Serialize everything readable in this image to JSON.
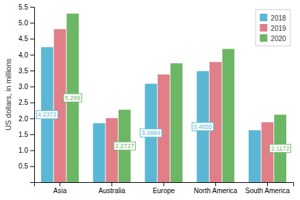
{
  "chart_data": {
    "type": "bar",
    "categories": [
      "Asia",
      "Australia",
      "Europe",
      "North America",
      "South America"
    ],
    "series": [
      {
        "name": "2018",
        "color": "#5bb8d4",
        "values": [
          4.2372,
          1.85,
          3.0884,
          3.4855,
          1.63
        ],
        "value_labels": [
          "4.2372",
          null,
          "3.0884",
          "3.4855",
          null
        ]
      },
      {
        "name": "2019",
        "color": "#e07f88",
        "values": [
          4.8,
          2.01,
          3.38,
          3.77,
          1.88
        ],
        "value_labels": [
          null,
          null,
          null,
          null,
          null
        ]
      },
      {
        "name": "2020",
        "color": "#6db665",
        "values": [
          5.289,
          2.2727,
          3.73,
          4.18,
          2.1172
        ],
        "value_labels": [
          "5.289",
          "2.2727",
          null,
          null,
          "2.1172"
        ]
      }
    ],
    "ylabel": "US dollars, in millions",
    "ylim": [
      0,
      5.5
    ],
    "yticks": [
      0.5,
      {
        "value": 1.0,
        "label": "1.0"
      },
      1.5,
      {
        "value": 2.0,
        "label": "2.0"
      },
      2.5,
      {
        "value": 3.0,
        "label": "3.0"
      },
      3.5,
      {
        "value": 4.0,
        "label": "4.0"
      },
      4.5,
      {
        "value": 5.0,
        "label": "5.0"
      },
      5.5
    ],
    "legend": "upper right"
  }
}
